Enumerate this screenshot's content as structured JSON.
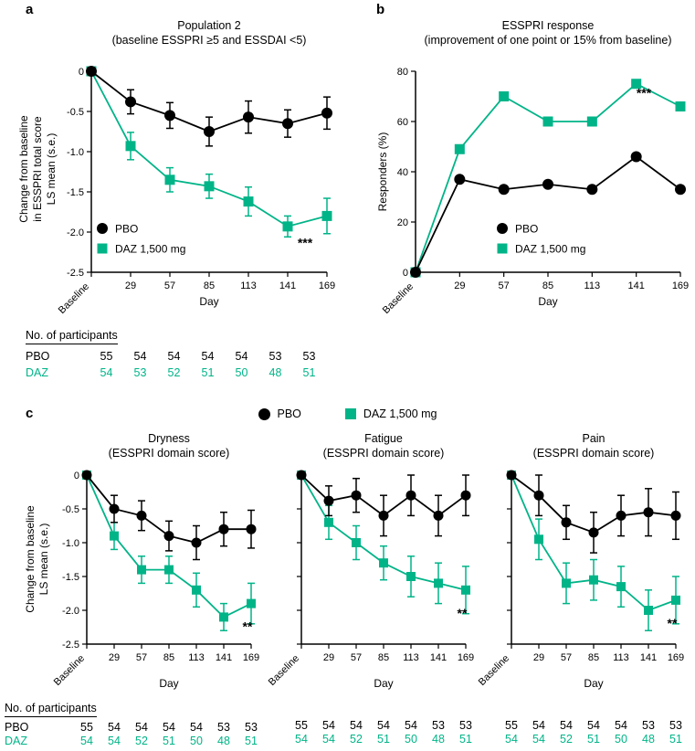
{
  "panels": {
    "a": "a",
    "b": "b",
    "c": "c"
  },
  "colors": {
    "green": "#00b488",
    "black": "#000000"
  },
  "panel_c": {
    "ylabel_line1": "Change from baseline",
    "ylabel_line2": "LS mean (s.e.)",
    "legend": [
      {
        "label": "PBO",
        "marker": "circle",
        "color": "#000000"
      },
      {
        "label": "DAZ 1,500 mg",
        "marker": "square",
        "color": "#00b488"
      }
    ]
  },
  "participants": {
    "header": "No. of participants",
    "pbo_label": "PBO",
    "daz_label": "DAZ",
    "table_a": {
      "pbo": [
        "55",
        "54",
        "54",
        "54",
        "54",
        "53",
        "53"
      ],
      "daz": [
        "54",
        "53",
        "52",
        "51",
        "50",
        "48",
        "51"
      ]
    },
    "table_c1": {
      "pbo": [
        "55",
        "54",
        "54",
        "54",
        "54",
        "53",
        "53"
      ],
      "daz": [
        "54",
        "54",
        "52",
        "51",
        "50",
        "48",
        "51"
      ]
    },
    "table_c2": {
      "pbo": [
        "55",
        "54",
        "54",
        "54",
        "54",
        "53",
        "53"
      ],
      "daz": [
        "54",
        "54",
        "52",
        "51",
        "50",
        "48",
        "51"
      ]
    },
    "table_c3": {
      "pbo": [
        "55",
        "54",
        "54",
        "54",
        "54",
        "53",
        "53"
      ],
      "daz": [
        "54",
        "54",
        "52",
        "51",
        "50",
        "48",
        "51"
      ]
    }
  },
  "chart_data": [
    {
      "id": "a",
      "type": "line",
      "title_line1": "Population 2",
      "title_line2": "(baseline ESSPRI ≥5 and ESSDAI <5)",
      "xlabel": "Day",
      "ylabel": [
        "Change from baseline",
        "in ESSPRI total score",
        "LS mean (s.e.)"
      ],
      "x_categories": [
        "Baseline",
        "29",
        "57",
        "85",
        "113",
        "141",
        "169"
      ],
      "ylim": [
        -2.5,
        0
      ],
      "yticks": [
        "0",
        "-0.5",
        "-1.0",
        "-1.5",
        "-2.0",
        "-2.5"
      ],
      "series": [
        {
          "name": "PBO",
          "marker": "circle",
          "color": "#000000",
          "values": [
            0,
            -0.38,
            -0.55,
            -0.75,
            -0.57,
            -0.65,
            -0.52
          ],
          "errors": [
            0,
            0.15,
            0.16,
            0.18,
            0.2,
            0.17,
            0.2
          ]
        },
        {
          "name": "DAZ 1,500 mg",
          "marker": "square",
          "color": "#00b488",
          "values": [
            0,
            -0.93,
            -1.35,
            -1.43,
            -1.62,
            -1.93,
            -1.8
          ],
          "errors": [
            0,
            0.17,
            0.15,
            0.15,
            0.18,
            0.13,
            0.22
          ]
        }
      ],
      "annotation": {
        "text": "***",
        "x_index": 6,
        "series": 1
      },
      "legend_position": "lower-left"
    },
    {
      "id": "b",
      "type": "line",
      "title_line1": "ESSPRI response",
      "title_line2": "(improvement of one point or 15% from baseline)",
      "xlabel": "Day",
      "ylabel": [
        "Responders (%)"
      ],
      "x_categories": [
        "Baseline",
        "29",
        "57",
        "85",
        "113",
        "141",
        "169"
      ],
      "ylim": [
        0,
        80
      ],
      "yticks": [
        "0",
        "20",
        "40",
        "60",
        "80"
      ],
      "series": [
        {
          "name": "PBO",
          "marker": "circle",
          "color": "#000000",
          "values": [
            0,
            37,
            33,
            35,
            33,
            46,
            33
          ]
        },
        {
          "name": "DAZ 1,500 mg",
          "marker": "square",
          "color": "#00b488",
          "values": [
            0,
            49,
            70,
            60,
            60,
            75,
            66
          ]
        }
      ],
      "annotation": {
        "text": "***",
        "x_index": 6,
        "series": 1
      },
      "legend_position": "lower-center"
    },
    {
      "id": "c-dryness",
      "type": "line",
      "title_line1": "Dryness",
      "title_line2": "(ESSPRI domain score)",
      "xlabel": "Day",
      "x_categories": [
        "Baseline",
        "29",
        "57",
        "85",
        "113",
        "141",
        "169"
      ],
      "ylim": [
        -2.5,
        0
      ],
      "yticks": [
        "0",
        "-0.5",
        "-1.0",
        "-1.5",
        "-2.0",
        "-2.5"
      ],
      "series": [
        {
          "name": "PBO",
          "marker": "circle",
          "color": "#000000",
          "values": [
            0,
            -0.5,
            -0.6,
            -0.9,
            -1.0,
            -0.8,
            -0.8
          ],
          "errors": [
            0,
            0.2,
            0.22,
            0.22,
            0.25,
            0.25,
            0.28
          ]
        },
        {
          "name": "DAZ 1,500 mg",
          "marker": "square",
          "color": "#00b488",
          "values": [
            0,
            -0.9,
            -1.4,
            -1.4,
            -1.7,
            -2.1,
            -1.9
          ],
          "errors": [
            0,
            0.2,
            0.2,
            0.2,
            0.25,
            0.2,
            0.3
          ]
        }
      ],
      "annotation": {
        "text": "**",
        "x_index": 6,
        "series": 1
      }
    },
    {
      "id": "c-fatigue",
      "type": "line",
      "title_line1": "Fatigue",
      "title_line2": "(ESSPRI domain score)",
      "xlabel": "Day",
      "x_categories": [
        "Baseline",
        "29",
        "57",
        "85",
        "113",
        "141",
        "169"
      ],
      "ylim": [
        -2.5,
        0
      ],
      "yticks": [
        "0",
        "-0.5",
        "-1.0",
        "-1.5",
        "-2.0",
        "-2.5"
      ],
      "series": [
        {
          "name": "PBO",
          "marker": "circle",
          "color": "#000000",
          "values": [
            0,
            -0.38,
            -0.3,
            -0.6,
            -0.3,
            -0.6,
            -0.3
          ],
          "errors": [
            0,
            0.22,
            0.25,
            0.3,
            0.3,
            0.3,
            0.3
          ]
        },
        {
          "name": "DAZ 1,500 mg",
          "marker": "square",
          "color": "#00b488",
          "values": [
            0,
            -0.7,
            -1.0,
            -1.3,
            -1.5,
            -1.6,
            -1.7
          ],
          "errors": [
            0,
            0.25,
            0.25,
            0.25,
            0.3,
            0.3,
            0.35
          ]
        }
      ],
      "annotation": {
        "text": "**",
        "x_index": 6,
        "series": 1
      }
    },
    {
      "id": "c-pain",
      "type": "line",
      "title_line1": "Pain",
      "title_line2": "(ESSPRI domain score)",
      "xlabel": "Day",
      "x_categories": [
        "Baseline",
        "29",
        "57",
        "85",
        "113",
        "141",
        "169"
      ],
      "ylim": [
        -2.5,
        0
      ],
      "yticks": [
        "0",
        "-0.5",
        "-1.0",
        "-1.5",
        "-2.0",
        "-2.5"
      ],
      "series": [
        {
          "name": "PBO",
          "marker": "circle",
          "color": "#000000",
          "values": [
            0,
            -0.3,
            -0.7,
            -0.85,
            -0.6,
            -0.55,
            -0.6
          ],
          "errors": [
            0,
            0.3,
            0.25,
            0.3,
            0.3,
            0.35,
            0.35
          ]
        },
        {
          "name": "DAZ 1,500 mg",
          "marker": "square",
          "color": "#00b488",
          "values": [
            0,
            -0.95,
            -1.6,
            -1.55,
            -1.65,
            -2.0,
            -1.85
          ],
          "errors": [
            0,
            0.3,
            0.3,
            0.3,
            0.3,
            0.3,
            0.35
          ]
        }
      ],
      "annotation": {
        "text": "**",
        "x_index": 6,
        "series": 1
      }
    }
  ]
}
